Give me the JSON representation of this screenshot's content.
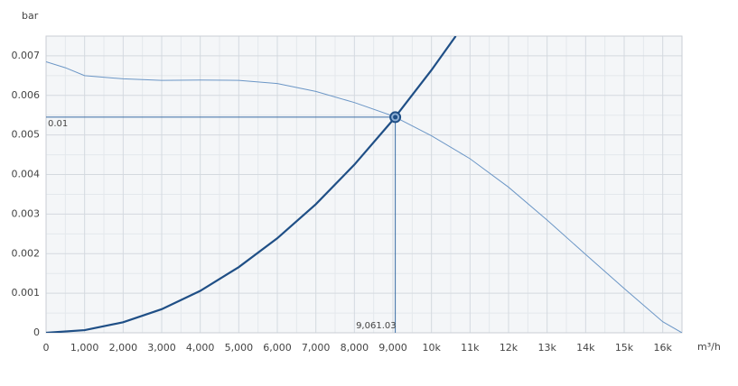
{
  "chart_data": {
    "type": "line",
    "y_label": "bar",
    "x_label": "m³/h",
    "xlim": [
      0,
      16500
    ],
    "ylim": [
      0,
      0.0075
    ],
    "xticks": [
      0,
      {
        "value": 1000,
        "label": "1,000"
      },
      {
        "value": 2000,
        "label": "2,000"
      },
      {
        "value": 3000,
        "label": "3,000"
      },
      {
        "value": 4000,
        "label": "4,000"
      },
      {
        "value": 5000,
        "label": "5,000"
      },
      {
        "value": 6000,
        "label": "6,000"
      },
      {
        "value": 7000,
        "label": "7,000"
      },
      {
        "value": 8000,
        "label": "8,000"
      },
      {
        "value": 9000,
        "label": "9,000"
      },
      {
        "value": 10000,
        "label": "10k"
      },
      {
        "value": 11000,
        "label": "11k"
      },
      {
        "value": 12000,
        "label": "12k"
      },
      {
        "value": 13000,
        "label": "13k"
      },
      {
        "value": 14000,
        "label": "14k"
      },
      {
        "value": 15000,
        "label": "15k"
      },
      {
        "value": 16000,
        "label": "16k"
      }
    ],
    "yticks": [
      0,
      0.001,
      0.002,
      0.003,
      0.004,
      0.005,
      0.006,
      0.007
    ],
    "grid": true,
    "minor_grid": true,
    "series": [
      {
        "color": "#6b96c6",
        "width": 1,
        "x": [
          0,
          500,
          1000,
          2000,
          3000,
          4000,
          5000,
          6000,
          7000,
          8000,
          9000,
          10000,
          11000,
          12000,
          13000,
          14000,
          15000,
          16000,
          16500
        ],
        "values": [
          0.00685,
          0.0067,
          0.0065,
          0.00642,
          0.00638,
          0.00639,
          0.00638,
          0.0063,
          0.0061,
          0.00582,
          0.00548,
          0.00498,
          0.0044,
          0.00368,
          0.00285,
          0.00198,
          0.00112,
          0.00028,
          0
        ]
      },
      {
        "color": "#1f4f86",
        "width": 2.2,
        "x": [
          0,
          1000,
          2000,
          3000,
          4000,
          5000,
          6000,
          7000,
          8000,
          9000,
          10000,
          10630
        ],
        "values": [
          0,
          6.64e-05,
          0.000266,
          0.000597,
          0.00106,
          0.00166,
          0.00239,
          0.00325,
          0.00425,
          0.00538,
          0.00664,
          0.0075
        ]
      }
    ],
    "operating_point": {
      "x": 9061.03,
      "y": 0.00545,
      "x_label": "9,061.03",
      "y_label": "0.01",
      "color": "#1f4f86"
    }
  }
}
